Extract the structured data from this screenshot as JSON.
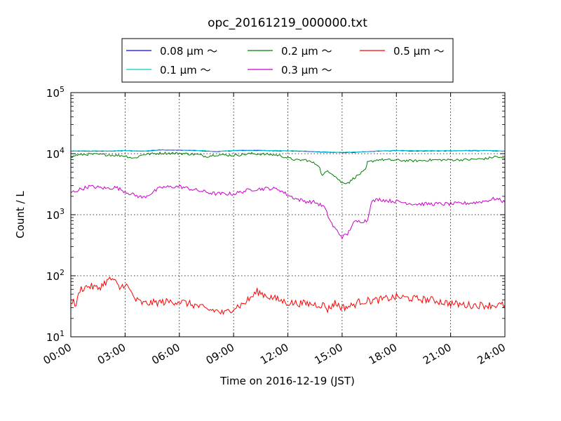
{
  "chart_data": {
    "type": "line",
    "title": "opc_20161219_000000.txt",
    "xlabel": "Time on 2016-12-19 (JST)",
    "ylabel": "Count / L",
    "yscale": "log",
    "ylim": [
      10,
      100000
    ],
    "xlim": [
      0,
      24
    ],
    "grid": true,
    "legend_position": "top-center, outside plot",
    "x_tick_labels": [
      "00:00",
      "03:00",
      "06:00",
      "09:00",
      "12:00",
      "15:00",
      "18:00",
      "21:00",
      "24:00"
    ],
    "x_ticks": [
      0,
      3,
      6,
      9,
      12,
      15,
      18,
      21,
      24
    ],
    "y_ticks": [
      {
        "value": 10,
        "mantissa": "10",
        "exponent": "1"
      },
      {
        "value": 100,
        "mantissa": "10",
        "exponent": "2"
      },
      {
        "value": 1000,
        "mantissa": "10",
        "exponent": "3"
      },
      {
        "value": 10000,
        "mantissa": "10",
        "exponent": "4"
      },
      {
        "value": 100000,
        "mantissa": "10",
        "exponent": "5"
      }
    ],
    "series": [
      {
        "name": "0.08 μm ～",
        "color": "#0000ff",
        "points": [
          [
            0,
            11000
          ],
          [
            1,
            11000
          ],
          [
            2,
            11000
          ],
          [
            3,
            11200
          ],
          [
            4,
            11000
          ],
          [
            5,
            11500
          ],
          [
            6,
            11400
          ],
          [
            7,
            11200
          ],
          [
            8,
            10800
          ],
          [
            9,
            11200
          ],
          [
            10,
            11300
          ],
          [
            11,
            11200
          ],
          [
            12,
            11100
          ],
          [
            13,
            10900
          ],
          [
            14,
            10600
          ],
          [
            15,
            10400
          ],
          [
            16,
            10600
          ],
          [
            17,
            11000
          ],
          [
            18,
            11200
          ],
          [
            19,
            11100
          ],
          [
            20,
            11100
          ],
          [
            21,
            11100
          ],
          [
            22,
            11200
          ],
          [
            23,
            11200
          ],
          [
            24,
            11000
          ]
        ]
      },
      {
        "name": "0.1 μm ～",
        "color": "#00cccc",
        "points": [
          [
            0,
            11100
          ],
          [
            1,
            11100
          ],
          [
            2,
            11100
          ],
          [
            3,
            11300
          ],
          [
            4,
            11100
          ],
          [
            5,
            11600
          ],
          [
            6,
            11500
          ],
          [
            7,
            11300
          ],
          [
            8,
            10900
          ],
          [
            9,
            11300
          ],
          [
            10,
            11400
          ],
          [
            11,
            11300
          ],
          [
            12,
            11200
          ],
          [
            13,
            11000
          ],
          [
            14,
            10700
          ],
          [
            15,
            10500
          ],
          [
            16,
            10700
          ],
          [
            17,
            11100
          ],
          [
            18,
            11300
          ],
          [
            19,
            11200
          ],
          [
            20,
            11200
          ],
          [
            21,
            11200
          ],
          [
            22,
            11300
          ],
          [
            23,
            11300
          ],
          [
            24,
            11100
          ]
        ]
      },
      {
        "name": "0.2 μm ～",
        "color": "#008000",
        "points": [
          [
            0,
            8600
          ],
          [
            0.3,
            9500
          ],
          [
            1,
            9800
          ],
          [
            2,
            9600
          ],
          [
            3,
            9200
          ],
          [
            3.5,
            8400
          ],
          [
            4,
            9700
          ],
          [
            5,
            10200
          ],
          [
            6,
            10100
          ],
          [
            7,
            9700
          ],
          [
            7.5,
            9000
          ],
          [
            8,
            9600
          ],
          [
            9,
            9400
          ],
          [
            10,
            10000
          ],
          [
            11,
            9700
          ],
          [
            11.5,
            9400
          ],
          [
            12,
            8500
          ],
          [
            12.5,
            7800
          ],
          [
            13,
            7900
          ],
          [
            13.7,
            6500
          ],
          [
            13.9,
            4300
          ],
          [
            14.2,
            5300
          ],
          [
            14.5,
            4600
          ],
          [
            15,
            3300
          ],
          [
            15.4,
            3400
          ],
          [
            15.6,
            3900
          ],
          [
            16,
            4700
          ],
          [
            16.3,
            5400
          ],
          [
            16.4,
            7200
          ],
          [
            17,
            8000
          ],
          [
            18,
            7800
          ],
          [
            19,
            7600
          ],
          [
            20,
            7900
          ],
          [
            21,
            7900
          ],
          [
            22,
            8000
          ],
          [
            23,
            8300
          ],
          [
            23.5,
            9000
          ],
          [
            24,
            8200
          ]
        ]
      },
      {
        "name": "0.3 μm ～",
        "color": "#cc00cc",
        "points": [
          [
            0,
            2300
          ],
          [
            0.5,
            2600
          ],
          [
            1,
            2900
          ],
          [
            2,
            2700
          ],
          [
            2.5,
            2800
          ],
          [
            3,
            2400
          ],
          [
            3.5,
            2100
          ],
          [
            4,
            1900
          ],
          [
            4.5,
            2300
          ],
          [
            5,
            2800
          ],
          [
            6,
            2900
          ],
          [
            7,
            2500
          ],
          [
            8,
            2200
          ],
          [
            9,
            2200
          ],
          [
            10,
            2600
          ],
          [
            11,
            2700
          ],
          [
            11.5,
            2600
          ],
          [
            12,
            2100
          ],
          [
            12.5,
            1800
          ],
          [
            13,
            1650
          ],
          [
            13.5,
            1600
          ],
          [
            14,
            1350
          ],
          [
            14.3,
            850
          ],
          [
            14.5,
            650
          ],
          [
            15,
            430
          ],
          [
            15.3,
            480
          ],
          [
            15.5,
            640
          ],
          [
            15.7,
            760
          ],
          [
            16,
            780
          ],
          [
            16.4,
            800
          ],
          [
            16.6,
            1600
          ],
          [
            17,
            1800
          ],
          [
            17.5,
            1700
          ],
          [
            18,
            1650
          ],
          [
            19,
            1500
          ],
          [
            20,
            1500
          ],
          [
            21,
            1500
          ],
          [
            22,
            1550
          ],
          [
            22.5,
            1600
          ],
          [
            23,
            1700
          ],
          [
            23.5,
            1850
          ],
          [
            24,
            1600
          ]
        ]
      },
      {
        "name": "0.5 μm ～",
        "color": "#ff0000",
        "points": [
          [
            0,
            40
          ],
          [
            0.3,
            33
          ],
          [
            0.5,
            60
          ],
          [
            1,
            68
          ],
          [
            1.5,
            62
          ],
          [
            2,
            82
          ],
          [
            2.3,
            90
          ],
          [
            2.7,
            62
          ],
          [
            3,
            75
          ],
          [
            3.3,
            55
          ],
          [
            3.6,
            40
          ],
          [
            4,
            35
          ],
          [
            5,
            37
          ],
          [
            6,
            38
          ],
          [
            7,
            32
          ],
          [
            7.5,
            28
          ],
          [
            8,
            27
          ],
          [
            8.5,
            24
          ],
          [
            9,
            30
          ],
          [
            9.5,
            34
          ],
          [
            10,
            45
          ],
          [
            10.3,
            55
          ],
          [
            11,
            45
          ],
          [
            12,
            36
          ],
          [
            13,
            35
          ],
          [
            14,
            33
          ],
          [
            14.2,
            28
          ],
          [
            14.6,
            36
          ],
          [
            15,
            30
          ],
          [
            15.5,
            32
          ],
          [
            16,
            38
          ],
          [
            17,
            40
          ],
          [
            18,
            45
          ],
          [
            19,
            42
          ],
          [
            20,
            40
          ],
          [
            21,
            35
          ],
          [
            22,
            33
          ],
          [
            23,
            33
          ],
          [
            24,
            33
          ]
        ]
      }
    ]
  }
}
